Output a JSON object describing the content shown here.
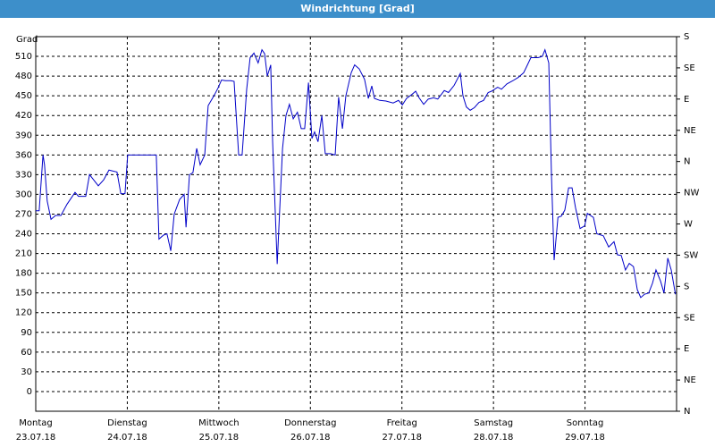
{
  "window": {
    "title": "Windrichtung [Grad]"
  },
  "chart_data": {
    "type": "line",
    "ylabel": "Grad",
    "xlim": [
      0,
      168
    ],
    "xticks": [
      {
        "value": 0,
        "label": "Montag",
        "date": "23.07.18"
      },
      {
        "value": 24,
        "label": "Dienstag",
        "date": "24.07.18"
      },
      {
        "value": 48,
        "label": "Mittwoch",
        "date": "25.07.18"
      },
      {
        "value": 72,
        "label": "Donnerstag",
        "date": "26.07.18"
      },
      {
        "value": 96,
        "label": "Freitag",
        "date": "27.07.18"
      },
      {
        "value": 120,
        "label": "Samstag",
        "date": "28.07.18"
      },
      {
        "value": 144,
        "label": "Sonntag",
        "date": "29.07.18"
      }
    ],
    "ylim": [
      -30,
      540
    ],
    "yticks": [
      0,
      30,
      60,
      90,
      120,
      150,
      180,
      210,
      240,
      270,
      300,
      330,
      360,
      390,
      420,
      450,
      480,
      510
    ],
    "y2lim": [
      0,
      540
    ],
    "y2ticks": [
      {
        "value": 0,
        "label": "N"
      },
      {
        "value": 45,
        "label": "NE"
      },
      {
        "value": 90,
        "label": "E"
      },
      {
        "value": 135,
        "label": "SE"
      },
      {
        "value": 180,
        "label": "S"
      },
      {
        "value": 225,
        "label": "SW"
      },
      {
        "value": 270,
        "label": "W"
      },
      {
        "value": 315,
        "label": "NW"
      },
      {
        "value": 360,
        "label": "N"
      },
      {
        "value": 405,
        "label": "NE"
      },
      {
        "value": 450,
        "label": "E"
      },
      {
        "value": 495,
        "label": "SE"
      },
      {
        "value": 540,
        "label": "S"
      }
    ],
    "grid": true,
    "series": [
      {
        "name": "Windrichtung",
        "color": "#0000c8",
        "x": [
          0,
          0.9,
          1.9,
          2.3,
          3.0,
          4.0,
          5.2,
          6.6,
          8.2,
          10.3,
          11.2,
          13.1,
          14.1,
          16.4,
          17.8,
          19.2,
          21.3,
          22.3,
          23.4,
          24.1,
          31.6,
          32.3,
          33.5,
          34.4,
          35.4,
          36.3,
          37.7,
          38.9,
          39.4,
          40.3,
          41.2,
          42.2,
          43.1,
          44.3,
          45.2,
          46.2,
          46.9,
          47.8,
          48.7,
          49.7,
          51.1,
          52.0,
          53.2,
          54.1,
          55.3,
          56.2,
          57.2,
          58.3,
          59.3,
          60.0,
          60.7,
          61.6,
          62.1,
          63.3,
          64.7,
          65.6,
          66.5,
          67.5,
          68.6,
          69.6,
          70.5,
          71.5,
          72.4,
          73.1,
          74.0,
          75.0,
          75.9,
          77.3,
          78.5,
          79.4,
          80.4,
          81.3,
          82.7,
          83.6,
          84.8,
          86.2,
          87.2,
          88.1,
          88.8,
          90.2,
          91.8,
          93.7,
          95.1,
          96.1,
          97.2,
          98.6,
          99.6,
          100.5,
          101.7,
          102.9,
          104.3,
          105.4,
          107.1,
          108.2,
          109.7,
          111.3,
          112.0,
          112.9,
          113.9,
          115.0,
          116.2,
          117.4,
          118.6,
          119.5,
          121.1,
          122.1,
          123.5,
          125.1,
          126.5,
          127.9,
          128.9,
          129.8,
          131.7,
          132.8,
          133.5,
          134.5,
          135.2,
          135.9,
          136.9,
          137.8,
          138.7,
          139.7,
          140.6,
          141.5,
          142.7,
          143.9,
          144.6,
          146.2,
          147.1,
          148.8,
          150.2,
          151.6,
          152.5,
          153.5,
          154.6,
          155.6,
          156.7,
          157.7,
          158.6,
          159.6,
          160.7,
          161.7,
          162.6,
          163.8,
          164.7,
          165.7,
          166.6,
          167.7
        ],
        "values": [
          275,
          275,
          360,
          345,
          290,
          262,
          268,
          268,
          285,
          303,
          297,
          297,
          330,
          313,
          322,
          337,
          334,
          301,
          301,
          360,
          360,
          232,
          238,
          240,
          214,
          270,
          292,
          300,
          250,
          330,
          333,
          370,
          345,
          360,
          435,
          445,
          452,
          462,
          474,
          473,
          473,
          472,
          360,
          360,
          460,
          508,
          515,
          500,
          520,
          514,
          480,
          497,
          380,
          194,
          370,
          420,
          437,
          415,
          425,
          400,
          400,
          470,
          385,
          395,
          380,
          420,
          362,
          362,
          360,
          448,
          400,
          450,
          485,
          497,
          491,
          475,
          446,
          465,
          446,
          443,
          442,
          439,
          443,
          436,
          446,
          452,
          457,
          447,
          437,
          445,
          447,
          445,
          458,
          455,
          466,
          484,
          450,
          433,
          428,
          432,
          440,
          443,
          455,
          457,
          463,
          460,
          468,
          473,
          478,
          485,
          497,
          508,
          508,
          510,
          520,
          500,
          330,
          200,
          265,
          267,
          276,
          310,
          310,
          280,
          248,
          252,
          271,
          265,
          240,
          237,
          220,
          228,
          208,
          207,
          185,
          195,
          190,
          155,
          143,
          148,
          150,
          165,
          185,
          168,
          150,
          203,
          185,
          148
        ]
      }
    ]
  }
}
